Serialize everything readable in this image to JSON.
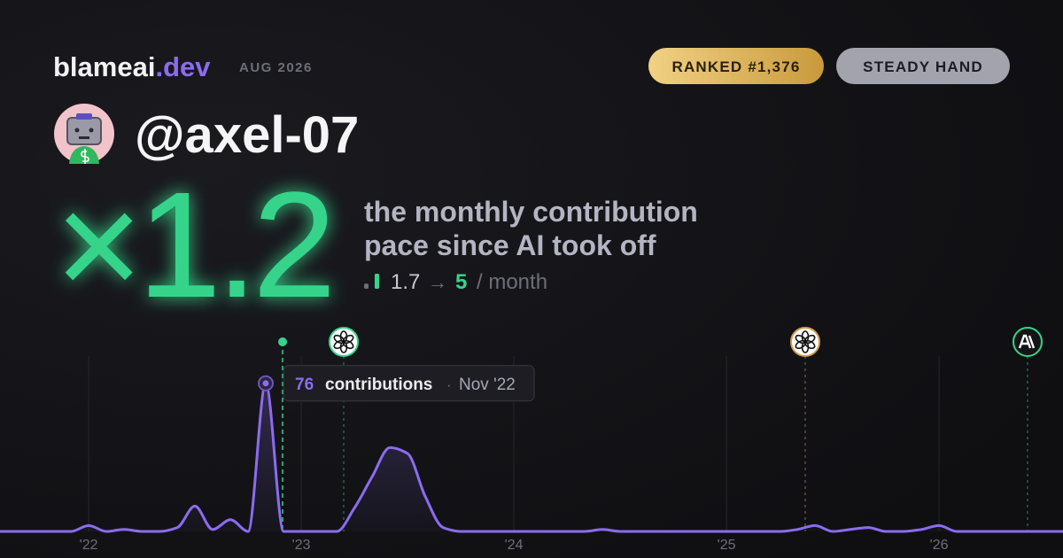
{
  "header": {
    "brand": "blameai",
    "brand_suffix": ".dev",
    "date": "AUG 2026",
    "badges": [
      "RANKED #1,376",
      "STEADY HAND"
    ]
  },
  "profile": {
    "handle": "@axel-07"
  },
  "headline": {
    "multiplier": "×1.2",
    "description": [
      "the monthly contribution",
      "pace since AI took off"
    ],
    "stats": {
      "before": 1.7,
      "arrow": "→",
      "after": 5,
      "unit": "/ month"
    }
  },
  "chart_data": {
    "type": "line",
    "x": [
      2021.583,
      2021.667,
      2021.75,
      2021.833,
      2021.917,
      2022,
      2022.083,
      2022.167,
      2022.25,
      2022.333,
      2022.417,
      2022.5,
      2022.583,
      2022.667,
      2022.75,
      2022.833,
      2022.917,
      2023,
      2023.083,
      2023.167,
      2023.25,
      2023.333,
      2023.417,
      2023.5,
      2023.583,
      2023.667,
      2023.75,
      2023.833,
      2023.917,
      2024,
      2024.083,
      2024.167,
      2024.25,
      2024.333,
      2024.417,
      2024.5,
      2024.583,
      2024.667,
      2024.75,
      2024.833,
      2024.917,
      2025,
      2025.083,
      2025.167,
      2025.25,
      2025.333,
      2025.417,
      2025.5,
      2025.583,
      2025.667,
      2025.75,
      2025.833,
      2025.917,
      2026,
      2026.083,
      2026.167,
      2026.25,
      2026.333,
      2026.417,
      2026.5,
      2026.583
    ],
    "series": [
      {
        "color": "#8b6cf0",
        "values": [
          0,
          0,
          0,
          0,
          0,
          3,
          0,
          1,
          0,
          0,
          2,
          13,
          1,
          6,
          0,
          76,
          0,
          0,
          0,
          0,
          12,
          28,
          43,
          40,
          18,
          2,
          0,
          0,
          0,
          0,
          0,
          0,
          0,
          0,
          1,
          0,
          0,
          0,
          0,
          0,
          0,
          0,
          0,
          0,
          0,
          1,
          3,
          0,
          1,
          2,
          0,
          0,
          1,
          3,
          0,
          0,
          0,
          0,
          0,
          0,
          0
        ]
      }
    ],
    "xlim": [
      2021.583,
      2026.583
    ],
    "ylim": [
      0,
      90
    ],
    "xticks": [
      {
        "value": 2022,
        "label": "'22"
      },
      {
        "value": 2023,
        "label": "'23"
      },
      {
        "value": 2024,
        "label": "'24"
      },
      {
        "value": 2025,
        "label": "'25"
      },
      {
        "value": 2026,
        "label": "'26"
      }
    ],
    "grid": true,
    "tooltip": {
      "index": 15,
      "label": "contributions",
      "separator": "·",
      "date": "Nov '22"
    }
  }
}
